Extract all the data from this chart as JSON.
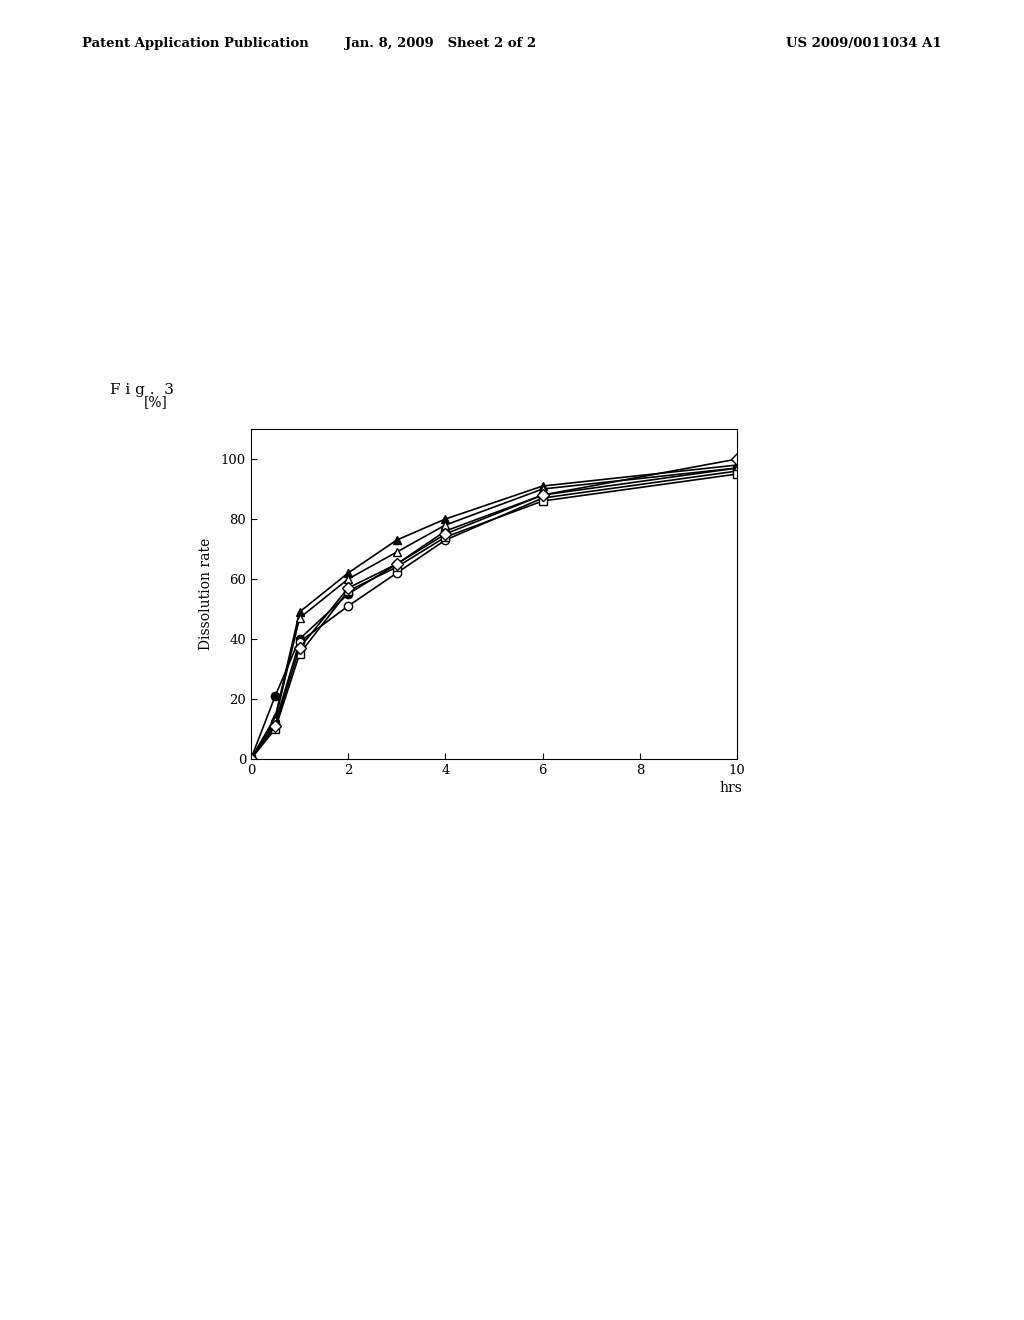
{
  "title_fig": "F i g .  3",
  "ylabel": "Dissolution rate",
  "ylabel_unit": "[%]",
  "xlabel": "hrs",
  "xlim": [
    0,
    10
  ],
  "ylim": [
    0,
    110
  ],
  "xticks": [
    0,
    2,
    4,
    6,
    8,
    10
  ],
  "yticks": [
    0,
    20,
    40,
    60,
    80,
    100
  ],
  "series": [
    {
      "name": "filled_circle",
      "marker": "o",
      "filled": true,
      "color": "black",
      "x": [
        0,
        0.5,
        1.0,
        2.0,
        3.0,
        4.0,
        6.0,
        10.0
      ],
      "y": [
        0,
        21,
        40,
        55,
        65,
        76,
        88,
        97
      ]
    },
    {
      "name": "open_circle",
      "marker": "o",
      "filled": false,
      "color": "black",
      "x": [
        0,
        0.5,
        1.0,
        2.0,
        3.0,
        4.0,
        6.0,
        10.0
      ],
      "y": [
        0,
        12,
        39,
        51,
        62,
        73,
        87,
        96
      ]
    },
    {
      "name": "filled_triangle",
      "marker": "^",
      "filled": true,
      "color": "black",
      "x": [
        0,
        0.5,
        1.0,
        2.0,
        3.0,
        4.0,
        6.0,
        10.0
      ],
      "y": [
        0,
        14,
        49,
        62,
        73,
        80,
        91,
        98
      ]
    },
    {
      "name": "open_triangle",
      "marker": "^",
      "filled": false,
      "color": "black",
      "x": [
        0,
        0.5,
        1.0,
        2.0,
        3.0,
        4.0,
        6.0,
        10.0
      ],
      "y": [
        0,
        13,
        47,
        60,
        69,
        78,
        90,
        97
      ]
    },
    {
      "name": "open_square",
      "marker": "s",
      "filled": false,
      "color": "black",
      "x": [
        0,
        0.5,
        1.0,
        2.0,
        3.0,
        4.0,
        6.0,
        10.0
      ],
      "y": [
        0,
        10,
        35,
        56,
        64,
        74,
        86,
        95
      ]
    },
    {
      "name": "open_diamond",
      "marker": "D",
      "filled": false,
      "color": "black",
      "x": [
        0,
        0.5,
        1.0,
        2.0,
        3.0,
        4.0,
        6.0,
        10.0
      ],
      "y": [
        0,
        11,
        37,
        57,
        65,
        75,
        88,
        100
      ]
    }
  ],
  "background_color": "#ffffff",
  "markersize": 6,
  "linewidth": 1.2
}
